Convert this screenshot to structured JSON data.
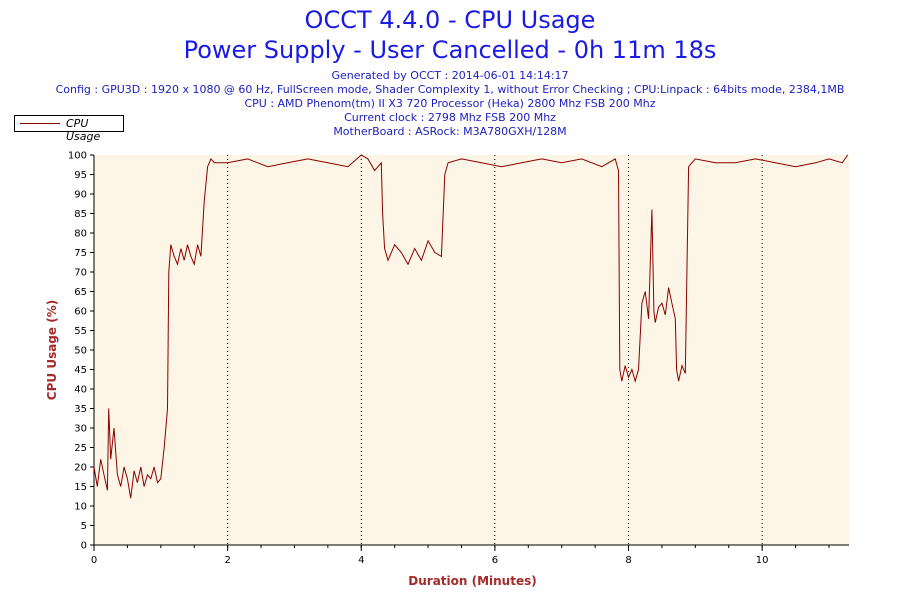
{
  "header": {
    "title": "OCCT 4.4.0 - CPU Usage",
    "subtitle": "Power Supply - User Cancelled - 0h 11m 18s",
    "info_lines": [
      "Generated by OCCT : 2014-06-01 14:14:17",
      "Config : GPU3D : 1920 x 1080 @ 60 Hz, FullScreen mode, Shader Complexity 1, without Error Checking ; CPU:Linpack : 64bits mode, 2384,1MB",
      "CPU : AMD Phenom(tm) II X3 720 Processor (Heka) 2800 Mhz FSB 200 Mhz",
      "Current clock : 2798 Mhz FSB 200 Mhz",
      "MotherBoard : ASRock: M3A780GXH/128M"
    ]
  },
  "legend": {
    "label": "CPU Usage"
  },
  "chart_data": {
    "type": "line",
    "title": "OCCT 4.4.0 - CPU Usage",
    "xlabel": "Duration (Minutes)",
    "ylabel": "CPU Usage (%)",
    "xlim": [
      0,
      11.3
    ],
    "ylim": [
      0,
      100
    ],
    "x_ticks": [
      0,
      2,
      4,
      6,
      8,
      10
    ],
    "x_tick_labels": [
      "0",
      "2",
      "4",
      "6",
      "8",
      "10"
    ],
    "y_ticks": [
      0,
      5,
      10,
      15,
      20,
      25,
      30,
      35,
      40,
      45,
      50,
      55,
      60,
      65,
      70,
      75,
      80,
      85,
      90,
      95,
      100
    ],
    "y_tick_labels": [
      "0",
      "5",
      "10",
      "15",
      "20",
      "25",
      "30",
      "35",
      "40",
      "45",
      "50",
      "55",
      "60",
      "65",
      "70",
      "75",
      "80",
      "85",
      "90",
      "95",
      "100"
    ],
    "grid": "vertical dotted at major x ticks",
    "legend_position": "top-left",
    "colors": {
      "line": "#8b0000",
      "plot_background": "#fdf5e6",
      "axis_title": "#a52a2a",
      "title": "#1a1ae6",
      "info": "#2020c0"
    },
    "series": [
      {
        "name": "CPU Usage",
        "x": [
          0,
          0.05,
          0.1,
          0.15,
          0.2,
          0.22,
          0.25,
          0.3,
          0.35,
          0.4,
          0.45,
          0.5,
          0.55,
          0.6,
          0.65,
          0.7,
          0.75,
          0.8,
          0.85,
          0.9,
          0.95,
          1.0,
          1.05,
          1.1,
          1.12,
          1.15,
          1.2,
          1.25,
          1.3,
          1.35,
          1.4,
          1.45,
          1.5,
          1.55,
          1.6,
          1.65,
          1.7,
          1.75,
          1.8,
          2.0,
          2.3,
          2.6,
          2.9,
          3.2,
          3.5,
          3.8,
          4.0,
          4.1,
          4.2,
          4.3,
          4.32,
          4.35,
          4.4,
          4.5,
          4.6,
          4.7,
          4.8,
          4.9,
          5.0,
          5.1,
          5.2,
          5.25,
          5.3,
          5.5,
          5.8,
          6.1,
          6.4,
          6.7,
          7.0,
          7.3,
          7.6,
          7.8,
          7.85,
          7.87,
          7.9,
          7.95,
          8.0,
          8.05,
          8.1,
          8.15,
          8.2,
          8.25,
          8.3,
          8.35,
          8.38,
          8.4,
          8.45,
          8.5,
          8.55,
          8.6,
          8.65,
          8.7,
          8.72,
          8.75,
          8.8,
          8.85,
          8.9,
          9.0,
          9.3,
          9.6,
          9.9,
          10.2,
          10.5,
          10.8,
          11.0,
          11.2,
          11.28
        ],
        "values": [
          20,
          15,
          22,
          18,
          14,
          35,
          22,
          30,
          18,
          15,
          20,
          17,
          12,
          19,
          16,
          20,
          15,
          18,
          17,
          20,
          16,
          17,
          25,
          35,
          70,
          77,
          74,
          72,
          76,
          73,
          77,
          74,
          72,
          77,
          74,
          88,
          97,
          99,
          98,
          98,
          99,
          97,
          98,
          99,
          98,
          97,
          100,
          99,
          96,
          98,
          85,
          76,
          73,
          77,
          75,
          72,
          76,
          73,
          78,
          75,
          74,
          95,
          98,
          99,
          98,
          97,
          98,
          99,
          98,
          99,
          97,
          99,
          96,
          45,
          42,
          46,
          43,
          45,
          42,
          45,
          62,
          65,
          58,
          86,
          60,
          57,
          61,
          62,
          59,
          66,
          62,
          58,
          45,
          42,
          46,
          44,
          97,
          99,
          98,
          98,
          99,
          98,
          97,
          98,
          99,
          98,
          100
        ]
      }
    ]
  }
}
